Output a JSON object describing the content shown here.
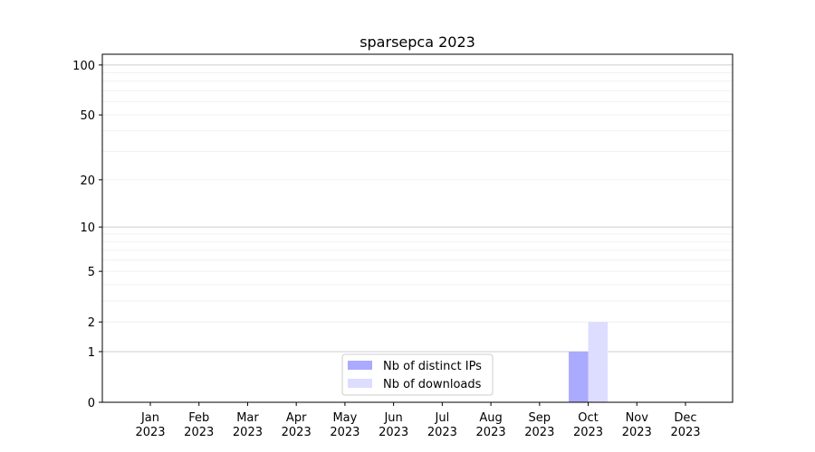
{
  "chart_data": {
    "type": "bar",
    "title": "sparsepca 2023",
    "xlabel": "",
    "ylabel": "",
    "yscale": "log(1+y)",
    "ylim": [
      0,
      116
    ],
    "grid": true,
    "legend_position": "lower center",
    "categories": [
      "Jan\n2023",
      "Feb\n2023",
      "Mar\n2023",
      "Apr\n2023",
      "May\n2023",
      "Jun\n2023",
      "Jul\n2023",
      "Aug\n2023",
      "Sep\n2023",
      "Oct\n2023",
      "Nov\n2023",
      "Dec\n2023"
    ],
    "ytick_labels": [
      "0",
      "1",
      "2",
      "5",
      "10",
      "20",
      "50",
      "100"
    ],
    "yticks": [
      0,
      1,
      2,
      5,
      10,
      20,
      50,
      100
    ],
    "series": [
      {
        "name": "Nb of distinct IPs",
        "color": "#aaaaff",
        "values": [
          0,
          0,
          0,
          0,
          0,
          0,
          0,
          0,
          0,
          1,
          0,
          0
        ]
      },
      {
        "name": "Nb of downloads",
        "color": "#ddddff",
        "values": [
          0,
          0,
          0,
          0,
          0,
          0,
          0,
          0,
          0,
          2,
          0,
          0
        ]
      }
    ]
  }
}
